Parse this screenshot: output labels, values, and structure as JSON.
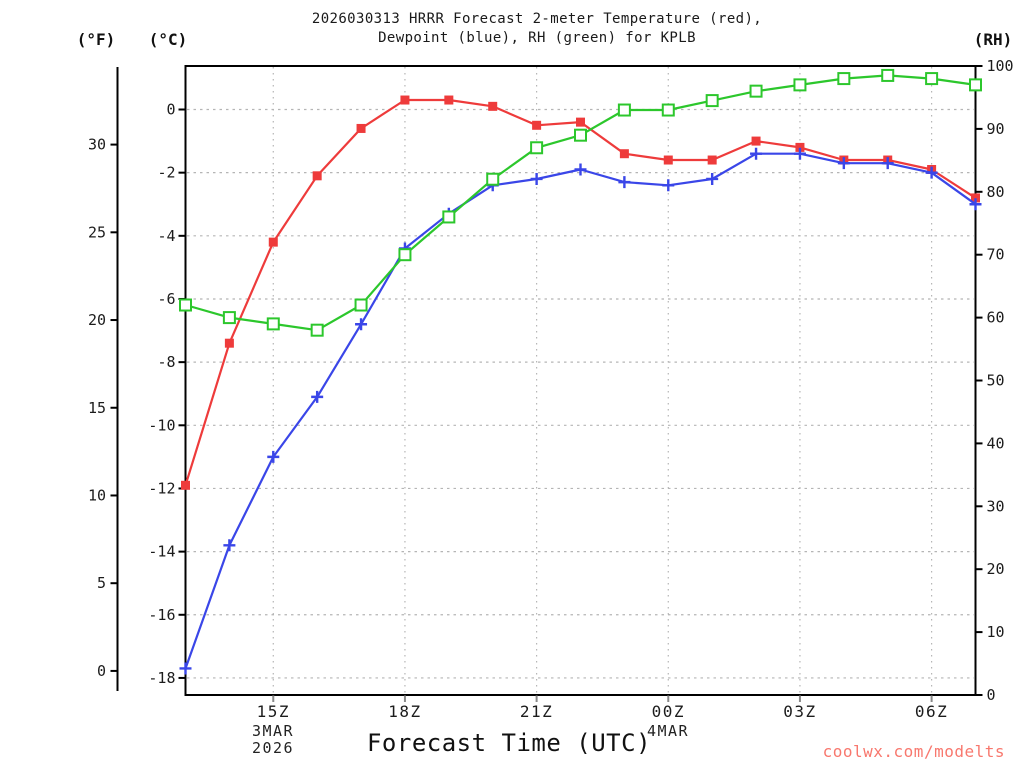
{
  "page": {
    "background": "#ffffff"
  },
  "title": {
    "line1": "2026030313 HRRR Forecast 2-meter Temperature (red),",
    "line2": "Dewpoint (blue), RH (green) for KPLB"
  },
  "axis_units": {
    "fahrenheit": "(°F)",
    "celsius": "(°C)",
    "humidity": "(RH)"
  },
  "x_axis": {
    "title": "Forecast Time (UTC)",
    "date_under_15z_line1": "3MAR",
    "date_under_15z_line2": "2026",
    "date_under_00z": "4MAR"
  },
  "watermark": {
    "text": "coolwx.com/modelts",
    "color": "#f8786e"
  },
  "chart_data": {
    "type": "line",
    "title": "2026030313 HRRR Forecast 2-meter Temperature (red), Dewpoint (blue), RH (green) for KPLB",
    "station": "KPLB",
    "model_run": "2026030313",
    "x_hours_utc": [
      "13Z",
      "14Z",
      "15Z",
      "16Z",
      "17Z",
      "18Z",
      "19Z",
      "20Z",
      "21Z",
      "22Z",
      "23Z",
      "00Z",
      "01Z",
      "02Z",
      "03Z",
      "04Z",
      "05Z",
      "06Z",
      "07Z"
    ],
    "x_numeric_hours": [
      13,
      14,
      15,
      16,
      17,
      18,
      19,
      20,
      21,
      22,
      23,
      24,
      25,
      26,
      27,
      28,
      29,
      30,
      31
    ],
    "x_range_hours": [
      13,
      31
    ],
    "x_tick_labels": [
      "15Z",
      "18Z",
      "21Z",
      "00Z",
      "03Z",
      "06Z"
    ],
    "x_tick_hours": [
      15,
      18,
      21,
      24,
      27,
      30
    ],
    "y_left_celsius": {
      "label": "(°C)",
      "ticks": [
        0,
        -2,
        -4,
        -6,
        -8,
        -10,
        -12,
        -14,
        -16,
        -18
      ],
      "top_value": 1.4,
      "bottom_value": -18.6
    },
    "y_left_fahrenheit": {
      "label": "(°F)",
      "ticks": [
        30,
        25,
        20,
        15,
        10,
        5,
        0
      ]
    },
    "y_right_rh": {
      "label": "(RH)",
      "ticks": [
        100,
        90,
        80,
        70,
        60,
        50,
        40,
        30,
        20,
        10,
        0
      ],
      "range": [
        0,
        100
      ]
    },
    "grid": {
      "horizontal_at_celsius_ticks": true,
      "vertical_at_x_ticks": true,
      "color": "#b5b5b5"
    },
    "legend_position": "in-title",
    "series": [
      {
        "name": "2-meter Temperature",
        "axis": "celsius",
        "unit": "°C",
        "color": "#ee3b3b",
        "marker": "filled-square",
        "values": [
          -11.9,
          -7.4,
          -4.2,
          -2.1,
          -0.6,
          0.3,
          0.3,
          0.1,
          -0.5,
          -0.4,
          -1.4,
          -1.6,
          -1.6,
          -1.0,
          -1.2,
          -1.6,
          -1.6,
          -1.9,
          -2.8
        ]
      },
      {
        "name": "Dewpoint",
        "axis": "celsius",
        "unit": "°C",
        "color": "#3a46e8",
        "marker": "plus",
        "values": [
          -17.7,
          -13.8,
          -11.0,
          -9.1,
          -6.8,
          -4.4,
          -3.3,
          -2.4,
          -2.2,
          -1.9,
          -2.3,
          -2.4,
          -2.2,
          -1.4,
          -1.4,
          -1.7,
          -1.7,
          -2.0,
          -3.0
        ]
      },
      {
        "name": "Relative Humidity",
        "axis": "rh",
        "unit": "%",
        "color": "#2cc72c",
        "marker": "open-square",
        "values": [
          62,
          60,
          59,
          58,
          62,
          70,
          76,
          82,
          87,
          89,
          93,
          93,
          94.5,
          96,
          97,
          98,
          98.5,
          98,
          97
        ]
      }
    ]
  }
}
